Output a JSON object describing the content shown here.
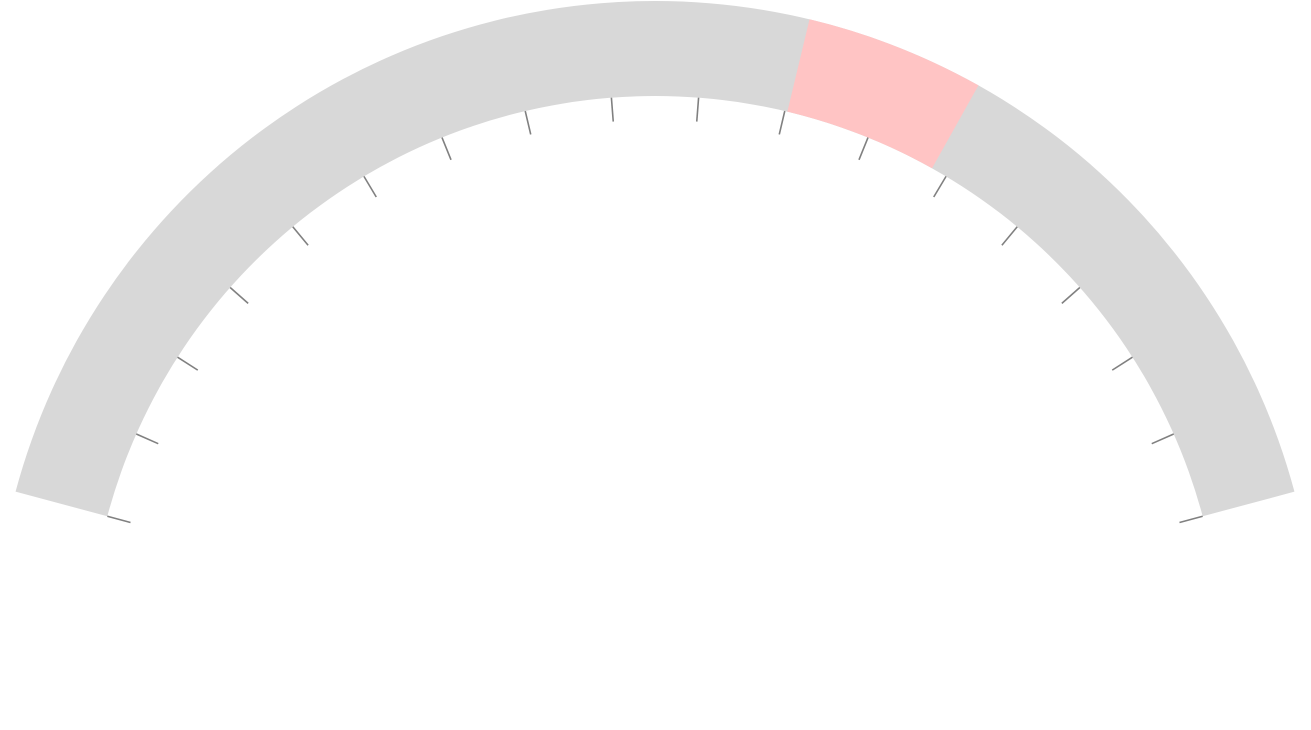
{
  "chart_data": {
    "type": "gauge",
    "title": "",
    "min": 0,
    "max": 1,
    "tick_step": 0.0588,
    "track_color": "#d8d8d8",
    "tick_color": "#808080",
    "bands": [
      {
        "from": 0.59,
        "to": 0.695,
        "color": "#ffc4c4"
      }
    ],
    "ticks": [
      0.0,
      0.0588,
      0.1176,
      0.1765,
      0.2353,
      0.2941,
      0.3529,
      0.4118,
      0.4706,
      0.5294,
      0.5882,
      0.6471,
      0.7059,
      0.7647,
      0.8235,
      0.8824,
      0.9412,
      1.0
    ]
  }
}
